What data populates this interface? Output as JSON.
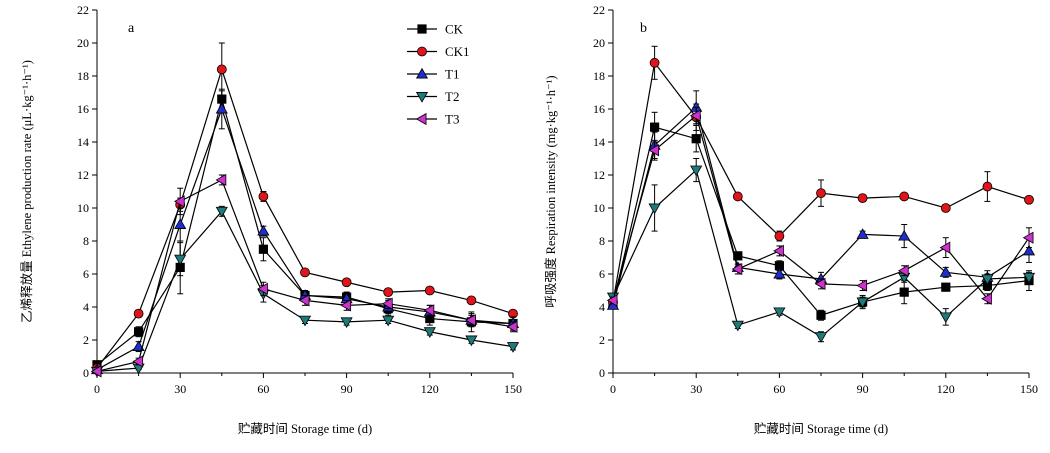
{
  "chart_data": [
    {
      "type": "line",
      "panel_label": "a",
      "xlabel": "贮藏时间 Storage time (d)",
      "ylabel": "乙烯释放量 Ethylene production rate (μL·kg⁻¹·h⁻¹)",
      "xlim": [
        0,
        150
      ],
      "ylim": [
        0,
        22
      ],
      "xticks": [
        0,
        30,
        60,
        90,
        120,
        150
      ],
      "yticks": [
        0,
        2,
        4,
        6,
        8,
        10,
        12,
        14,
        16,
        18,
        20,
        22
      ],
      "grid": false,
      "legend": "top-right",
      "x": [
        0,
        15,
        30,
        45,
        60,
        75,
        90,
        105,
        120,
        135,
        150
      ],
      "series": [
        {
          "name": "CK",
          "marker": "square",
          "fill": "#000000",
          "values": [
            0.5,
            2.5,
            6.4,
            16.6,
            7.5,
            4.7,
            4.6,
            3.9,
            3.3,
            3.1,
            3.0
          ],
          "errors": [
            0.15,
            0.3,
            1.6,
            0.5,
            0.7,
            0.3,
            0.3,
            0.4,
            0.4,
            0.6,
            0.4
          ]
        },
        {
          "name": "CK1",
          "marker": "circle",
          "fill": "#e0141a",
          "values": [
            0.3,
            3.6,
            10.2,
            18.4,
            10.7,
            6.1,
            5.5,
            4.9,
            5.0,
            4.4,
            3.6
          ],
          "errors": [
            0.1,
            0.2,
            0.4,
            1.6,
            0.3,
            0.2,
            0.2,
            0.2,
            0.2,
            0.2,
            0.2
          ]
        },
        {
          "name": "T1",
          "marker": "triangle-up",
          "fill": "#1f2ec8",
          "values": [
            0.2,
            1.6,
            9.0,
            16.0,
            8.6,
            4.7,
            4.5,
            4.0,
            3.7,
            3.2,
            3.0
          ],
          "errors": [
            0.1,
            0.3,
            1.0,
            1.2,
            0.3,
            0.3,
            0.4,
            0.4,
            0.4,
            0.4,
            0.4
          ]
        },
        {
          "name": "T2",
          "marker": "triangle-down",
          "fill": "#1f7a7a",
          "values": [
            0.1,
            0.3,
            6.9,
            9.8,
            4.8,
            3.2,
            3.1,
            3.2,
            2.5,
            2.0,
            1.6
          ],
          "errors": [
            0.05,
            0.1,
            1.0,
            0.3,
            0.5,
            0.2,
            0.2,
            0.2,
            0.2,
            0.2,
            0.2
          ]
        },
        {
          "name": "T3",
          "marker": "triangle-left",
          "fill": "#d030d0",
          "values": [
            0.1,
            0.7,
            10.4,
            11.7,
            5.1,
            4.4,
            4.1,
            4.2,
            3.8,
            3.2,
            2.8
          ],
          "errors": [
            0.05,
            0.2,
            0.8,
            0.3,
            0.4,
            0.3,
            0.3,
            0.3,
            0.3,
            0.3,
            0.3
          ]
        }
      ]
    },
    {
      "type": "line",
      "panel_label": "b",
      "xlabel": "贮藏时间 Storage time (d)",
      "ylabel": "呼吸强度 Respiration intensity (mg·kg⁻¹·h⁻¹)",
      "xlim": [
        0,
        150
      ],
      "ylim": [
        0,
        22
      ],
      "xticks": [
        0,
        30,
        60,
        90,
        120,
        150
      ],
      "yticks": [
        0,
        2,
        4,
        6,
        8,
        10,
        12,
        14,
        16,
        18,
        20,
        22
      ],
      "grid": false,
      "legend": "none",
      "x": [
        0,
        15,
        30,
        45,
        60,
        75,
        90,
        105,
        120,
        135,
        150
      ],
      "series": [
        {
          "name": "CK",
          "marker": "square",
          "fill": "#000000",
          "values": [
            4.2,
            14.9,
            14.2,
            7.1,
            6.5,
            3.5,
            4.3,
            4.9,
            5.2,
            5.3,
            5.6
          ],
          "errors": [
            0.3,
            0.9,
            0.8,
            0.2,
            0.3,
            0.3,
            0.4,
            0.7,
            0.2,
            0.3,
            0.6
          ]
        },
        {
          "name": "CK1",
          "marker": "circle",
          "fill": "#e0141a",
          "values": [
            4.3,
            18.8,
            15.5,
            10.7,
            8.3,
            10.9,
            10.6,
            10.7,
            10.0,
            11.3,
            10.5
          ],
          "errors": [
            0.3,
            1.0,
            0.8,
            0.2,
            0.3,
            0.8,
            0.2,
            0.2,
            0.2,
            0.9,
            0.2
          ]
        },
        {
          "name": "T1",
          "marker": "triangle-up",
          "fill": "#1f2ec8",
          "values": [
            4.1,
            13.8,
            16.1,
            6.4,
            6.0,
            5.7,
            8.4,
            8.3,
            6.1,
            5.8,
            7.4
          ],
          "errors": [
            0.2,
            0.8,
            1.0,
            0.2,
            0.3,
            0.4,
            0.2,
            0.7,
            0.3,
            0.4,
            0.7
          ]
        },
        {
          "name": "T2",
          "marker": "triangle-down",
          "fill": "#1f7a7a",
          "values": [
            4.6,
            10.0,
            12.3,
            2.9,
            3.7,
            2.2,
            4.3,
            5.8,
            3.4,
            5.7,
            5.8
          ],
          "errors": [
            0.2,
            1.4,
            0.7,
            0.2,
            0.2,
            0.3,
            0.3,
            0.3,
            0.5,
            0.3,
            0.3
          ]
        },
        {
          "name": "T3",
          "marker": "triangle-left",
          "fill": "#d030d0",
          "values": [
            4.4,
            13.5,
            15.6,
            6.3,
            7.4,
            5.4,
            5.3,
            6.2,
            7.6,
            4.5,
            8.2
          ],
          "errors": [
            0.2,
            0.6,
            0.5,
            0.3,
            0.3,
            0.3,
            0.3,
            0.3,
            0.6,
            0.3,
            0.6
          ]
        }
      ]
    }
  ]
}
